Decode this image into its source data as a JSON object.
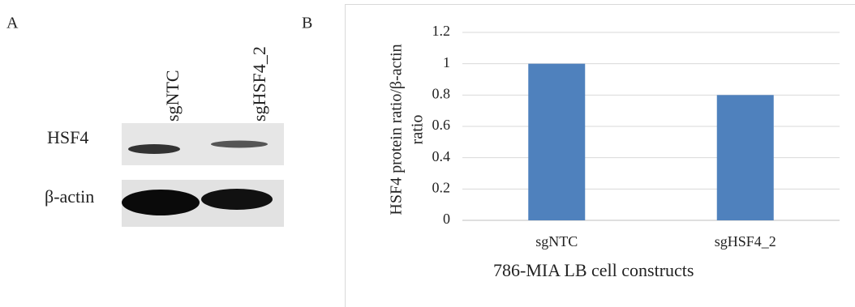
{
  "panel_labels": [
    "A",
    "B"
  ],
  "blot": {
    "lanes": [
      "sgNTC",
      "sgHSF4_2"
    ],
    "rows": [
      "HSF4",
      "β-actin"
    ]
  },
  "chart_data": {
    "type": "bar",
    "categories": [
      "sgNTC",
      "sgHSF4_2"
    ],
    "values": [
      1,
      0.8
    ],
    "color": "#4f81bd",
    "xlabel": "786-MIA LB cell constructs",
    "ylabel": [
      "HSF4 protein ratio/β-actin",
      "ratio"
    ],
    "ylim": [
      0,
      1.2
    ],
    "yticks": [
      0,
      0.2,
      0.4,
      0.6,
      0.8,
      1,
      1.2
    ],
    "grid": true
  }
}
